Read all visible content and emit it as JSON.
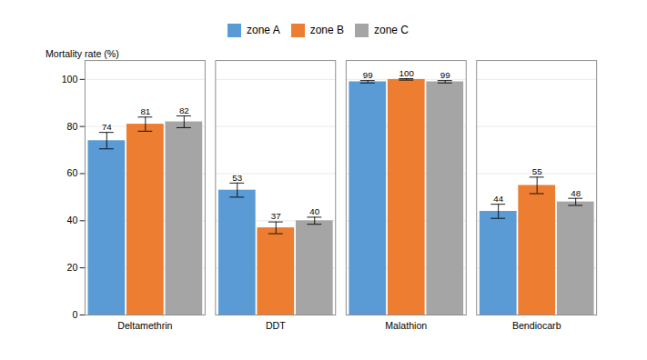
{
  "chart_data": {
    "type": "bar",
    "categories": [
      "Deltamethrin",
      "DDT",
      "Malathion",
      "Bendiocarb"
    ],
    "series": [
      {
        "name": "zone A",
        "color": "#5B9BD5",
        "values": [
          74,
          53,
          99,
          44
        ],
        "errors": [
          3.5,
          3.0,
          0.5,
          3.0
        ]
      },
      {
        "name": "zone B",
        "color": "#ED7D31",
        "values": [
          81,
          37,
          100,
          55
        ],
        "errors": [
          3.0,
          2.5,
          0.3,
          3.5
        ]
      },
      {
        "name": "zone C",
        "color": "#A5A5A5",
        "values": [
          82,
          40,
          99,
          48
        ],
        "errors": [
          2.5,
          1.5,
          0.5,
          1.5
        ]
      }
    ],
    "y_label": "Mortality rate (%)",
    "ylim": [
      0,
      108
    ],
    "yticks": [
      0,
      20,
      40,
      60,
      80,
      100
    ],
    "grid": true,
    "legend": "top",
    "data_labels": true
  }
}
